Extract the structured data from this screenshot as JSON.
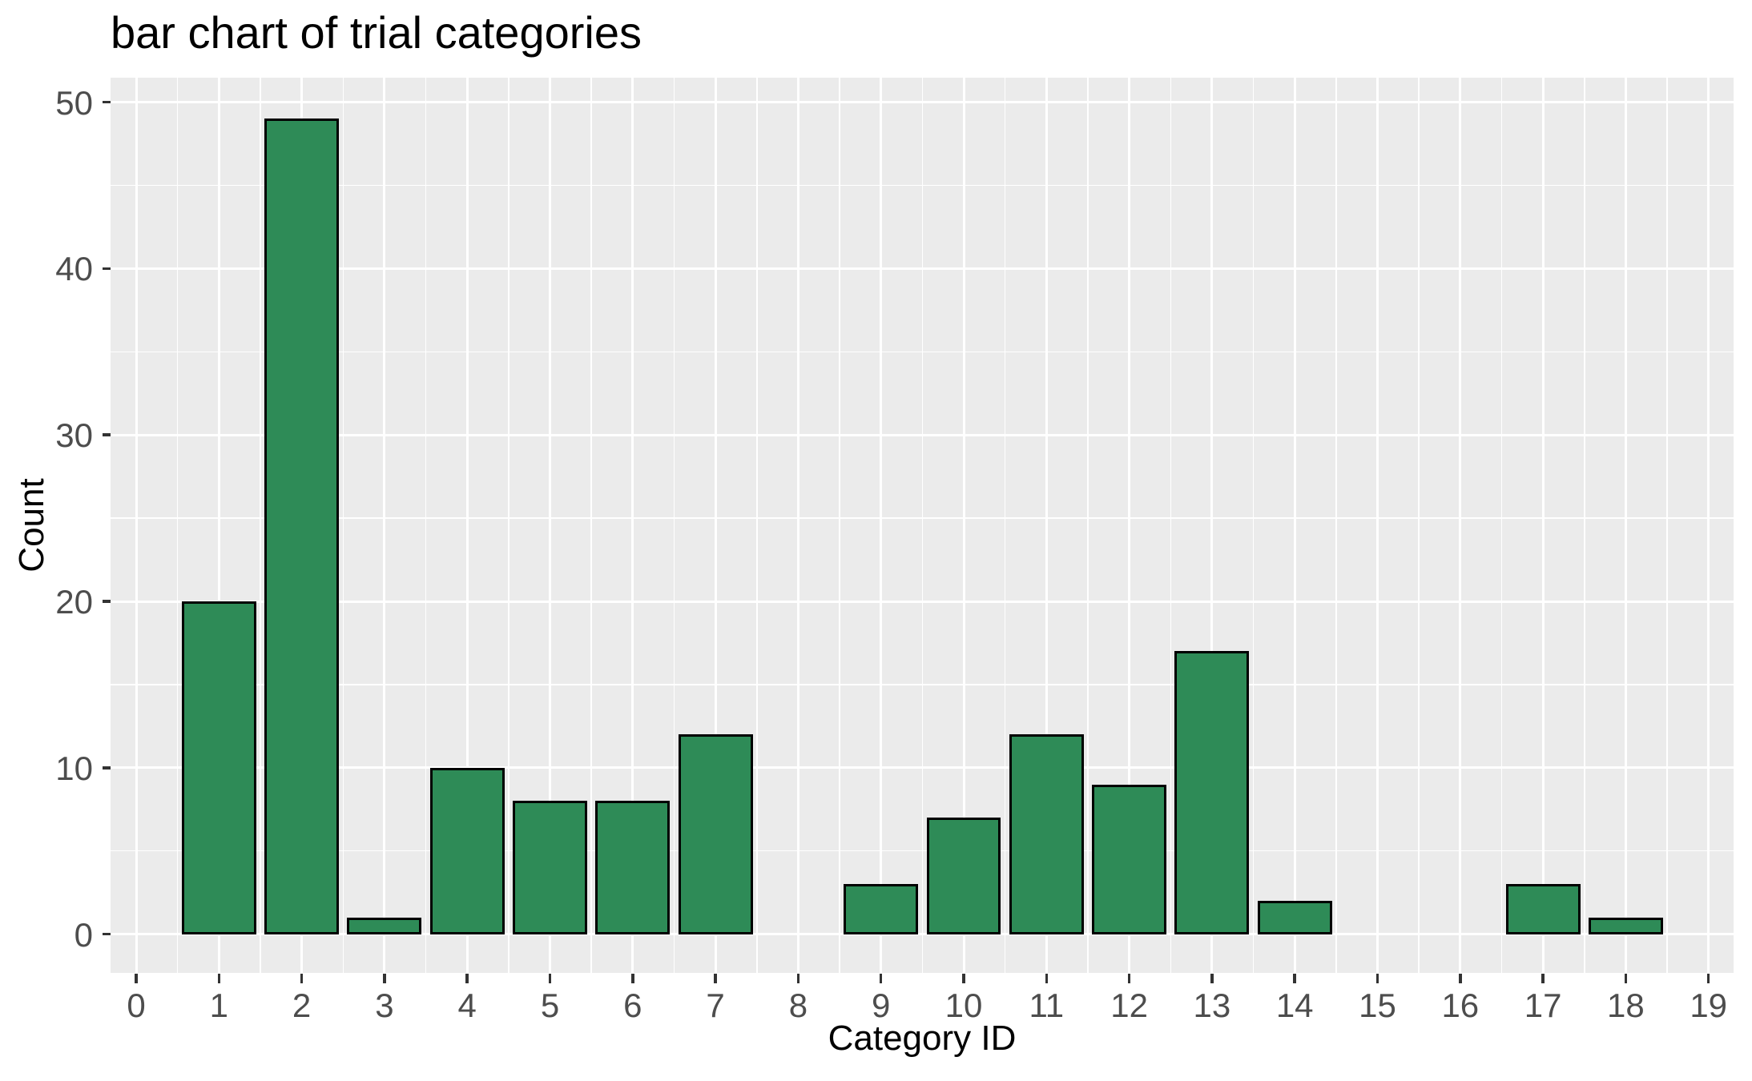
{
  "chart_data": {
    "type": "bar",
    "title": "bar chart of trial categories",
    "xlabel": "Category ID",
    "ylabel": "Count",
    "categories": [
      0,
      1,
      2,
      3,
      4,
      5,
      6,
      7,
      8,
      9,
      10,
      11,
      12,
      13,
      14,
      15,
      16,
      17,
      18,
      19
    ],
    "values": [
      0,
      20,
      49,
      1,
      10,
      8,
      8,
      12,
      0,
      3,
      7,
      12,
      9,
      17,
      2,
      0,
      0,
      3,
      1,
      0
    ],
    "xticks": [
      0,
      1,
      2,
      3,
      4,
      5,
      6,
      7,
      8,
      9,
      10,
      11,
      12,
      13,
      14,
      15,
      16,
      17,
      18,
      19
    ],
    "yticks": [
      0,
      10,
      20,
      30,
      40,
      50
    ],
    "yticks_minor": [
      5,
      15,
      25,
      35,
      45
    ],
    "xlim": [
      0,
      19
    ],
    "ylim": [
      0,
      50
    ],
    "bar_width": 0.9,
    "grid": "major-and-minor-white-on-gray",
    "legend": "none",
    "colors": {
      "bar_fill": "#2E8B57",
      "bar_stroke": "#000000",
      "panel_bg": "#EBEBEB",
      "grid": "#FFFFFF",
      "tick_label": "#4D4D4D",
      "tick_mark": "#333333",
      "text": "#000000",
      "background": "#FFFFFF"
    }
  }
}
